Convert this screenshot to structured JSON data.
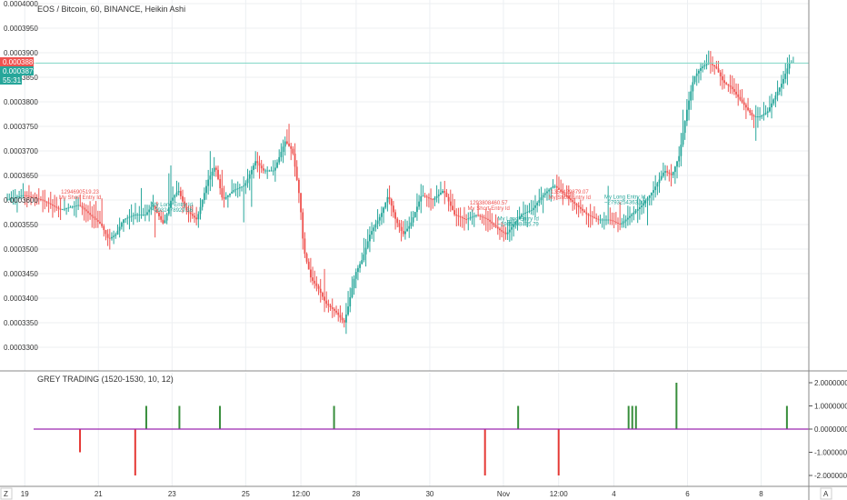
{
  "colors": {
    "up": "#26a69a",
    "down": "#ef5350",
    "grid": "#eceff2",
    "axis": "#555555",
    "price_line": "#7fd6c4",
    "badge_red": "#ef5350",
    "badge_green": "#26a69a",
    "zero_line": "#9c27b0",
    "hist_up": "#388e3c",
    "hist_down": "#e53935"
  },
  "main": {
    "title": "EOS / Bitcoin, 60, BINANCE, Heikin Ashi"
  },
  "indicator": {
    "title": "GREY TRADING (1520-1530, 10, 12)"
  },
  "badges": {
    "last_price": "0.0003881",
    "current_price": "0.0003879",
    "countdown": "55:31"
  },
  "corner_buttons": {
    "left": "Z",
    "right": "A"
  },
  "chart_data": [
    {
      "type": "candlestick",
      "title": "EOS / Bitcoin, 60, BINANCE, Heikin Ashi",
      "ylim": [
        0.00032,
        0.0004
      ],
      "y_ticks": [
        "0.0003300",
        "0.0003350",
        "0.0003400",
        "0.0003450",
        "0.0003500",
        "0.0003550",
        "0.0003600",
        "0.0003650",
        "0.0003700",
        "0.0003750",
        "0.0003800",
        "0.0003850",
        "0.0003900",
        "0.0003950",
        "0.0004000"
      ],
      "y_tick_values": [
        0.00033,
        0.000335,
        0.00034,
        0.000345,
        0.00035,
        0.000355,
        0.00036,
        0.000365,
        0.00037,
        0.000375,
        0.00038,
        0.000385,
        0.00039,
        0.000395,
        0.0004
      ],
      "x_ticks": [
        "19",
        "21",
        "23",
        "25",
        "12:00",
        "28",
        "30",
        "Nov",
        "12:00",
        "4",
        "6",
        "8"
      ],
      "x_tick_positions": [
        0.5,
        2.5,
        4.5,
        6.5,
        8.0,
        9.5,
        11.5,
        13.5,
        15.0,
        16.5,
        18.5,
        20.5
      ],
      "x_range": [
        0.0,
        21.4
      ],
      "price_line_value": 0.0003879,
      "path_points": [
        [
          0.0,
          0.00036
        ],
        [
          0.5,
          0.000361
        ],
        [
          1.0,
          0.00036
        ],
        [
          1.5,
          0.000358
        ],
        [
          2.0,
          0.000359
        ],
        [
          2.3,
          0.000357
        ],
        [
          2.6,
          0.000355
        ],
        [
          2.8,
          0.000352
        ],
        [
          3.0,
          0.000353
        ],
        [
          3.2,
          0.000356
        ],
        [
          3.5,
          0.000357
        ],
        [
          3.8,
          0.000357
        ],
        [
          4.0,
          0.000359
        ],
        [
          4.3,
          0.000355
        ],
        [
          4.5,
          0.00036
        ],
        [
          4.7,
          0.000362
        ],
        [
          4.9,
          0.000358
        ],
        [
          5.2,
          0.000356
        ],
        [
          5.5,
          0.000364
        ],
        [
          5.7,
          0.000367
        ],
        [
          5.9,
          0.00036
        ],
        [
          6.2,
          0.000362
        ],
        [
          6.5,
          0.000363
        ],
        [
          6.8,
          0.000368
        ],
        [
          7.0,
          0.000366
        ],
        [
          7.3,
          0.000366
        ],
        [
          7.6,
          0.000372
        ],
        [
          7.8,
          0.00037
        ],
        [
          8.0,
          0.00036
        ],
        [
          8.1,
          0.00035
        ],
        [
          8.3,
          0.000344
        ],
        [
          8.5,
          0.000342
        ],
        [
          8.7,
          0.000339
        ],
        [
          9.0,
          0.000337
        ],
        [
          9.2,
          0.000335
        ],
        [
          9.3,
          0.000338
        ],
        [
          9.5,
          0.000345
        ],
        [
          9.7,
          0.000348
        ],
        [
          9.9,
          0.000353
        ],
        [
          10.2,
          0.000357
        ],
        [
          10.4,
          0.000361
        ],
        [
          10.6,
          0.000356
        ],
        [
          10.8,
          0.000353
        ],
        [
          11.0,
          0.000355
        ],
        [
          11.3,
          0.000361
        ],
        [
          11.6,
          0.00036
        ],
        [
          11.9,
          0.000362
        ],
        [
          12.2,
          0.000357
        ],
        [
          12.5,
          0.000356
        ],
        [
          12.8,
          0.000357
        ],
        [
          13.1,
          0.000356
        ],
        [
          13.4,
          0.000354
        ],
        [
          13.6,
          0.000353
        ],
        [
          13.8,
          0.000355
        ],
        [
          14.0,
          0.000357
        ],
        [
          14.3,
          0.000358
        ],
        [
          14.6,
          0.000361
        ],
        [
          14.9,
          0.000363
        ],
        [
          15.2,
          0.000361
        ],
        [
          15.5,
          0.000359
        ],
        [
          15.8,
          0.000357
        ],
        [
          16.1,
          0.000356
        ],
        [
          16.4,
          0.000356
        ],
        [
          16.7,
          0.000355
        ],
        [
          17.0,
          0.000357
        ],
        [
          17.3,
          0.000359
        ],
        [
          17.6,
          0.000362
        ],
        [
          17.9,
          0.000366
        ],
        [
          18.1,
          0.000365
        ],
        [
          18.3,
          0.000369
        ],
        [
          18.5,
          0.000378
        ],
        [
          18.7,
          0.000385
        ],
        [
          18.9,
          0.000387
        ],
        [
          19.1,
          0.000388
        ],
        [
          19.3,
          0.000387
        ],
        [
          19.5,
          0.000384
        ],
        [
          19.7,
          0.000383
        ],
        [
          19.9,
          0.000381
        ],
        [
          20.1,
          0.000379
        ],
        [
          20.3,
          0.000377
        ],
        [
          20.5,
          0.000377
        ],
        [
          20.7,
          0.000378
        ],
        [
          20.9,
          0.000381
        ],
        [
          21.1,
          0.000384
        ],
        [
          21.3,
          0.000388
        ]
      ]
    },
    {
      "type": "bar",
      "title": "GREY TRADING (1520-1530, 10, 12)",
      "ylim": [
        -2.1,
        2.3
      ],
      "y_ticks": [
        "2.0000000",
        "1.0000000",
        "0.0000000",
        "-1.0000000",
        "-2.0000000"
      ],
      "y_tick_values": [
        2,
        1,
        0,
        -1,
        -2
      ],
      "x_range": [
        0.0,
        21.4
      ],
      "bars": [
        {
          "x": 2.0,
          "value": -1
        },
        {
          "x": 3.5,
          "value": -2
        },
        {
          "x": 3.8,
          "value": 1
        },
        {
          "x": 4.7,
          "value": 1
        },
        {
          "x": 5.8,
          "value": 1
        },
        {
          "x": 8.9,
          "value": 1
        },
        {
          "x": 13.0,
          "value": -2
        },
        {
          "x": 13.9,
          "value": 1
        },
        {
          "x": 15.0,
          "value": -2
        },
        {
          "x": 16.9,
          "value": 1
        },
        {
          "x": 17.0,
          "value": 1
        },
        {
          "x": 17.1,
          "value": 1
        },
        {
          "x": 18.2,
          "value": 2
        },
        {
          "x": 21.2,
          "value": 1
        }
      ]
    }
  ],
  "annotations": [
    {
      "x": 2.0,
      "y": 0.0003613,
      "lines": [
        "1294690519.23",
        "My Short Entry Id"
      ],
      "color": "#ef5350"
    },
    {
      "x": 4.5,
      "y": 0.0003587,
      "lines": [
        "My Long Entry Id",
        "~2932478929.36"
      ],
      "color": "#26a69a"
    },
    {
      "x": 13.1,
      "y": 0.0003591,
      "lines": [
        "1293808460.57",
        "My Short Entry Id"
      ],
      "color": "#ef5350"
    },
    {
      "x": 13.9,
      "y": 0.0003558,
      "lines": [
        "My Long Entry Id",
        "~2945808435.79"
      ],
      "color": "#26a69a"
    },
    {
      "x": 15.3,
      "y": 0.0003613,
      "lines": [
        "1356429879.07",
        "My Short Entry Id"
      ],
      "color": "#ef5350"
    },
    {
      "x": 16.8,
      "y": 0.0003603,
      "lines": [
        "My Long Entry Id",
        "~2793254363.13"
      ],
      "color": "#26a69a"
    }
  ]
}
